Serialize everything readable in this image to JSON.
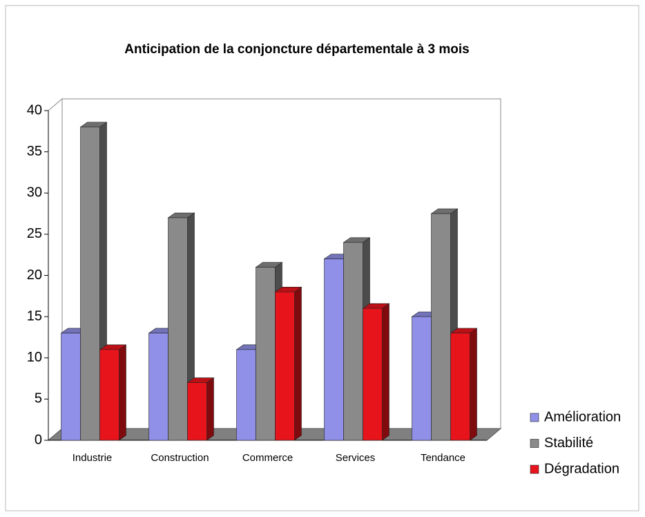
{
  "chart_data": {
    "type": "bar3d",
    "title": "Anticipation de la conjoncture départementale à 3 mois",
    "categories": [
      "Industrie",
      "Construction",
      "Commerce",
      "Services",
      "Tendance"
    ],
    "series": [
      {
        "name": "Amélioration",
        "color": "#9090e8",
        "values": [
          13,
          13,
          11,
          22,
          15
        ]
      },
      {
        "name": "Stabilité",
        "color": "#8a8a8a",
        "values": [
          38,
          27,
          21,
          24,
          27.5
        ]
      },
      {
        "name": "Dégradation",
        "color": "#e8141c",
        "values": [
          11,
          7,
          18,
          16,
          13
        ]
      }
    ],
    "ylim": [
      0,
      40
    ],
    "yticks": [
      0,
      5,
      10,
      15,
      20,
      25,
      30,
      35,
      40
    ],
    "legend": "right"
  }
}
